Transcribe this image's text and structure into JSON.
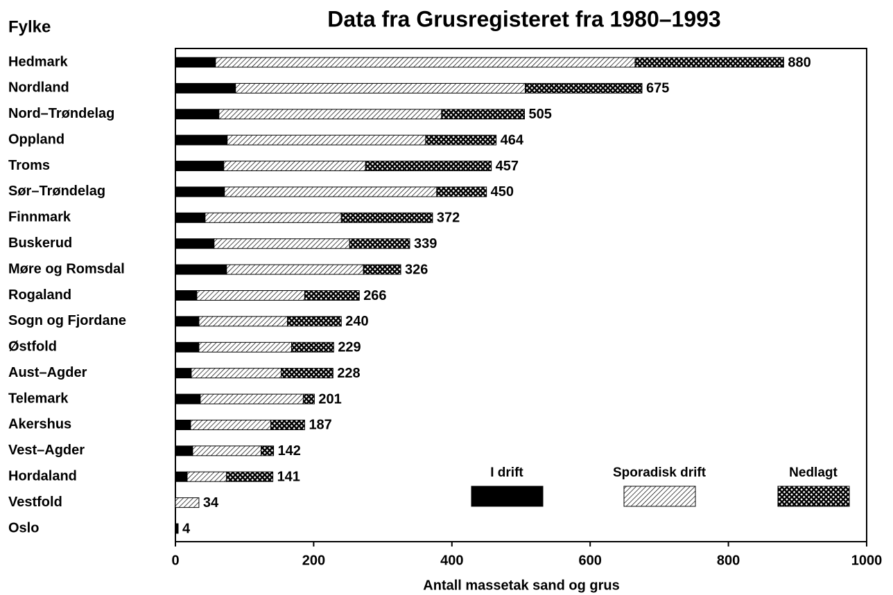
{
  "chart_data": {
    "type": "stacked-barh",
    "title": "Data fra Grusregisteret fra 1980–1993",
    "ylabel": "Fylke",
    "xlabel": "Antall massetak sand og grus",
    "categories": [
      "Hedmark",
      "Nordland",
      "Nord–Trøndelag",
      "Oppland",
      "Troms",
      "Sør–Trøndelag",
      "Finnmark",
      "Buskerud",
      "Møre og Romsdal",
      "Rogaland",
      "Sogn og Fjordane",
      "Østfold",
      "Aust–Agder",
      "Telemark",
      "Akershus",
      "Vest–Agder",
      "Hordaland",
      "Vestfold",
      "Oslo"
    ],
    "series": [
      {
        "name": "I drift",
        "color": "#000000",
        "pattern": "solid",
        "values": [
          58,
          87,
          63,
          75,
          70,
          71,
          43,
          56,
          74,
          31,
          34,
          34,
          23,
          36,
          22,
          25,
          17,
          0,
          4
        ]
      },
      {
        "name": "Sporadisk drift",
        "color": "#000000",
        "pattern": "hatch",
        "values": [
          607,
          419,
          322,
          287,
          205,
          307,
          197,
          196,
          198,
          156,
          128,
          134,
          130,
          149,
          116,
          99,
          57,
          34,
          0
        ]
      },
      {
        "name": "Nedlagt",
        "color": "#000000",
        "pattern": "crosshatch",
        "values": [
          215,
          169,
          120,
          102,
          182,
          72,
          132,
          87,
          54,
          79,
          78,
          61,
          75,
          16,
          49,
          18,
          67,
          0,
          0
        ]
      }
    ],
    "totals": [
      880,
      675,
      505,
      464,
      457,
      450,
      372,
      339,
      326,
      266,
      240,
      229,
      228,
      201,
      187,
      142,
      141,
      34,
      4
    ],
    "xlim": [
      0,
      1000
    ],
    "xticks": [
      0,
      200,
      400,
      600,
      800,
      1000
    ],
    "grid": false
  }
}
